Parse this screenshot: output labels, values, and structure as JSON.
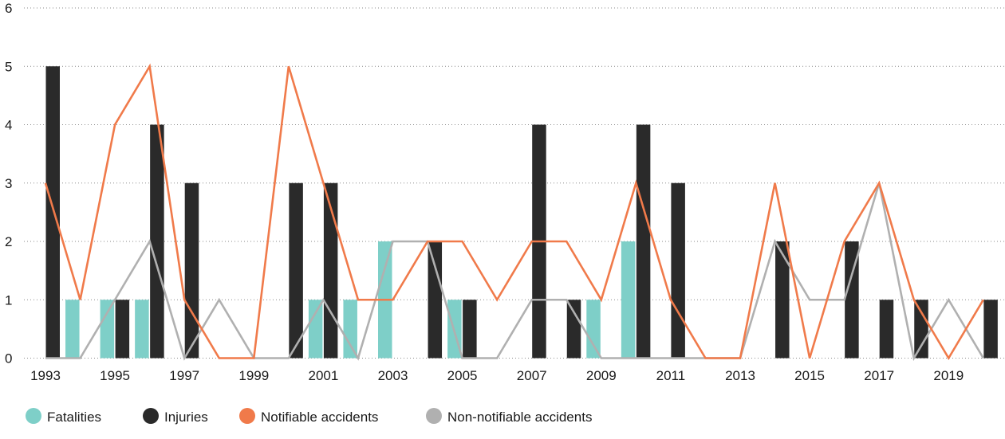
{
  "chart_data": {
    "type": "bar",
    "x": [
      1993,
      1994,
      1995,
      1996,
      1997,
      1998,
      1999,
      2000,
      2001,
      2002,
      2003,
      2004,
      2005,
      2006,
      2007,
      2008,
      2009,
      2010,
      2011,
      2012,
      2013,
      2014,
      2015,
      2016,
      2017,
      2018,
      2019,
      2020
    ],
    "x_tick_labels": [
      "1993",
      "1995",
      "1997",
      "1999",
      "2001",
      "2003",
      "2005",
      "2007",
      "2009",
      "2011",
      "2013",
      "2015",
      "2017",
      "2019"
    ],
    "y_ticks": [
      "0",
      "1",
      "2",
      "3",
      "4",
      "5",
      "6"
    ],
    "ylim": [
      0,
      6
    ],
    "grid": "horizontal dotted",
    "legend_position": "bottom-left",
    "series": [
      {
        "name": "Fatalities",
        "kind": "bar",
        "color": "#7ecfc8",
        "values": [
          0,
          1,
          1,
          1,
          0,
          0,
          0,
          0,
          1,
          1,
          2,
          0,
          1,
          0,
          0,
          0,
          1,
          2,
          0,
          0,
          0,
          0,
          0,
          0,
          0,
          0,
          0,
          0
        ]
      },
      {
        "name": "Injuries",
        "kind": "bar",
        "color": "#2a2a2a",
        "values": [
          5,
          0,
          1,
          4,
          3,
          0,
          0,
          3,
          3,
          0,
          0,
          2,
          1,
          0,
          4,
          1,
          0,
          4,
          3,
          0,
          0,
          2,
          0,
          2,
          1,
          1,
          0,
          1
        ]
      },
      {
        "name": "Notifiable accidents",
        "kind": "line",
        "color": "#f07a4a",
        "values": [
          3,
          1,
          4,
          5,
          1,
          0,
          0,
          5,
          3,
          1,
          1,
          2,
          2,
          1,
          2,
          2,
          1,
          3,
          1,
          0,
          0,
          3,
          0,
          2,
          3,
          1,
          0,
          1
        ]
      },
      {
        "name": "Non-notifiable accidents",
        "kind": "line",
        "color": "#b0b0b0",
        "values": [
          0,
          0,
          1,
          2,
          0,
          1,
          0,
          0,
          1,
          0,
          2,
          2,
          0,
          0,
          1,
          1,
          0,
          0,
          0,
          0,
          0,
          2,
          1,
          1,
          3,
          0,
          1,
          0
        ]
      }
    ]
  }
}
